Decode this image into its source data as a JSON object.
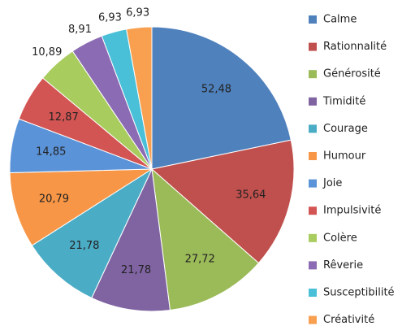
{
  "chart_data": {
    "type": "pie",
    "categories": [
      "Calme",
      "Rationnalité",
      "Générosité",
      "Timidité",
      "Courage",
      "Humour",
      "Joie",
      "Impulsivité",
      "Colère",
      "Rêverie",
      "Susceptibilité",
      "Créativité"
    ],
    "values": [
      52.48,
      35.64,
      27.72,
      21.78,
      21.78,
      20.79,
      14.85,
      12.87,
      10.89,
      8.91,
      6.93,
      6.93
    ],
    "value_labels": [
      "52,48",
      "35,64",
      "27,72",
      "21,78",
      "21,78",
      "20,79",
      "14,85",
      "12,87",
      "10,89",
      "8,91",
      "6,93",
      "6,93"
    ],
    "colors": [
      "#4f81bd",
      "#c0504d",
      "#9bbb59",
      "#8064a2",
      "#4bacc6",
      "#f79646",
      "#5b93d8",
      "#d35553",
      "#a8cc5e",
      "#8b6bb3",
      "#49bfd8",
      "#f8a050"
    ],
    "legend": "right"
  }
}
